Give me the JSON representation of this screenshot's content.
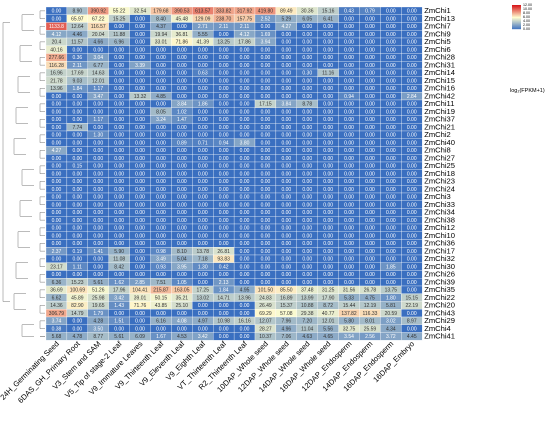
{
  "chart_data": {
    "type": "heatmap",
    "columns": [
      "24H_Germinating Seed",
      "6DAS_GH_Primary Root",
      "V3_Stem and SAM",
      "V5_Tip of stage-2 Leaf",
      "V9_Immature Leaves",
      "V9_Thirteenth Leaf",
      "V9_Eleventh Leaf",
      "V9_Eighth Leaf",
      "VT_Thirteenth Leaf",
      "R2_Thirteenth Leaf",
      "10DAP_Whole seed",
      "12DAP_Whole seed",
      "14DAP_Whole seed",
      "16DAP_Whole seed",
      "12DAP_Endosperm",
      "14DAP_Endosperm",
      "16DAP_Endosperm",
      "16DAP_Embryo"
    ],
    "rows": [
      "ZmChi1",
      "ZmChi13",
      "ZmChi7",
      "ZmChi9",
      "ZmChi5",
      "ZmChi6",
      "ZmChi28",
      "ZmChi31",
      "ZmChi14",
      "ZmChi15",
      "ZmChi16",
      "ZmChi42",
      "ZmChi11",
      "ZmChi19",
      "ZmChi37",
      "ZmChi21",
      "ZmChi2",
      "ZmChi40",
      "ZmChi8",
      "ZmChi27",
      "ZmChi25",
      "ZmChi18",
      "ZmChi23",
      "ZmChi24",
      "ZmChi3",
      "ZmChi33",
      "ZmChi34",
      "ZmChi38",
      "ZmChi12",
      "ZmChi10",
      "ZmChi36",
      "ZmChi17",
      "ZmChi32",
      "ZmChi30",
      "ZmChi26",
      "ZmChi39",
      "ZmChi35",
      "ZmChi22",
      "ZmChi20",
      "ZmChi43",
      "ZmChi29",
      "ZmChi4",
      "ZmChi41"
    ],
    "values": [
      [
        "0.00",
        "8.90",
        "390.92",
        "55.22",
        "32.54",
        "179.68",
        "390.53",
        "613.57",
        "333.82",
        "317.92",
        "419.80",
        "89.49",
        "30.36",
        "15.16",
        "0.43",
        "0.79",
        "0.00",
        "0.00"
      ],
      [
        "0.00",
        "65.97",
        "67.22",
        "15.25",
        "0.00",
        "8.40",
        "45.48",
        "129.09",
        "238.70",
        "157.75",
        "2.52",
        "5.29",
        "6.05",
        "6.41",
        "0.00",
        "0.00",
        "0.00",
        "0.00"
      ],
      [
        "1133.8",
        "12.64",
        "116.57",
        "0.00",
        "0.00",
        "4.37",
        "0.00",
        "2.71",
        "2.11",
        "2.11",
        "0.00",
        "4.27",
        "0.00",
        "0.00",
        "0.00",
        "0.00",
        "0.00",
        "0.00"
      ],
      [
        "4.12",
        "4.46",
        "20.04",
        "11.88",
        "0.00",
        "19.94",
        "36.81",
        "5.55",
        "0.00",
        "4.12",
        "1.69",
        "0.00",
        "0.00",
        "0.00",
        "0.00",
        "0.00",
        "0.00",
        "0.00"
      ],
      [
        "20.4",
        "11.57",
        "4.66",
        "6.96",
        "0.00",
        "33.01",
        "71.86",
        "41.39",
        "13.25",
        "17.86",
        "3.94",
        "0.00",
        "0.00",
        "0.00",
        "0.00",
        "0.00",
        "0.00",
        "0.00"
      ],
      [
        "40.16",
        "0.00",
        "0.00",
        "0.00",
        "0.00",
        "0.00",
        "0.00",
        "0.00",
        "0.00",
        "0.00",
        "0.00",
        "0.00",
        "0.00",
        "0.00",
        "0.00",
        "0.00",
        "0.00",
        "0.00"
      ],
      [
        "277.66",
        "0.36",
        "3.04",
        "0.00",
        "0.00",
        "0.00",
        "0.00",
        "0.00",
        "0.00",
        "0.00",
        "0.00",
        "0.00",
        "0.00",
        "0.00",
        "0.00",
        "0.00",
        "0.00",
        "0.00"
      ],
      [
        "116.28",
        "2.11",
        "6.77",
        "0.00",
        "3.39",
        "0.00",
        "0.00",
        "0.00",
        "0.00",
        "0.00",
        "0.00",
        "0.00",
        "0.00",
        "0.00",
        "0.00",
        "0.00",
        "0.00",
        "0.00"
      ],
      [
        "16.96",
        "17.69",
        "14.63",
        "0.00",
        "0.00",
        "0.00",
        "0.00",
        "0.63",
        "0.00",
        "0.00",
        "0.00",
        "0.00",
        "0.30",
        "11.16",
        "0.00",
        "0.00",
        "0.00",
        "0.00"
      ],
      [
        "21.78",
        "9.03",
        "12.01",
        "0.00",
        "0.00",
        "0.00",
        "0.00",
        "0.00",
        "0.00",
        "0.00",
        "0.00",
        "0.00",
        "0.00",
        "0.00",
        "0.00",
        "0.00",
        "0.00",
        "0.00"
      ],
      [
        "13.96",
        "1.84",
        "1.17",
        "0.00",
        "0.00",
        "0.00",
        "0.00",
        "0.00",
        "0.00",
        "0.00",
        "0.00",
        "0.00",
        "0.00",
        "0.00",
        "0.00",
        "0.00",
        "0.00",
        "0.00"
      ],
      [
        "0.00",
        "0.00",
        "3.47",
        "0.00",
        "13.32",
        "4.85",
        "0.00",
        "0.00",
        "0.00",
        "0.00",
        "0.00",
        "0.00",
        "0.00",
        "0.00",
        "0.94",
        "0.00",
        "0.00",
        "2.84"
      ],
      [
        "0.00",
        "0.00",
        "0.00",
        "0.00",
        "0.00",
        "0.00",
        "3.84",
        "1.86",
        "0.00",
        "0.00",
        "17.15",
        "3.84",
        "8.78",
        "0.00",
        "0.00",
        "0.00",
        "0.00",
        "0.00"
      ],
      [
        "0.00",
        "0.00",
        "0.00",
        "0.00",
        "0.00",
        "8.05",
        "1.02",
        "0.00",
        "0.00",
        "0.00",
        "0.00",
        "0.00",
        "0.00",
        "0.00",
        "0.00",
        "0.00",
        "0.00",
        "0.00"
      ],
      [
        "0.00",
        "0.00",
        "1.17",
        "0.00",
        "0.00",
        "3.24",
        "1.47",
        "0.00",
        "0.00",
        "0.00",
        "0.00",
        "0.00",
        "0.00",
        "0.00",
        "0.00",
        "0.00",
        "0.00",
        "0.00"
      ],
      [
        "0.00",
        "7.74",
        "0.00",
        "0.00",
        "0.00",
        "0.00",
        "0.00",
        "0.00",
        "0.00",
        "0.00",
        "0.00",
        "0.00",
        "0.00",
        "0.00",
        "0.00",
        "0.00",
        "0.00",
        "0.00"
      ],
      [
        "0.00",
        "0.00",
        "1.30",
        "0.00",
        "0.00",
        "0.00",
        "0.00",
        "0.00",
        "0.00",
        "0.00",
        "0.00",
        "0.00",
        "0.00",
        "0.00",
        "0.00",
        "0.00",
        "0.00",
        "0.00"
      ],
      [
        "0.00",
        "0.00",
        "0.00",
        "0.00",
        "0.00",
        "0.00",
        "0.89",
        "0.71",
        "0.94",
        "3.80",
        "0.00",
        "0.00",
        "0.00",
        "0.00",
        "0.00",
        "0.00",
        "0.00",
        "0.00"
      ],
      [
        "4.27",
        "0.00",
        "0.00",
        "0.00",
        "0.00",
        "0.00",
        "0.00",
        "0.00",
        "0.00",
        "0.00",
        "0.00",
        "0.00",
        "0.00",
        "0.00",
        "0.00",
        "0.00",
        "0.00",
        "0.00"
      ],
      [
        "0.00",
        "0.00",
        "0.00",
        "0.00",
        "0.00",
        "0.00",
        "0.00",
        "0.00",
        "0.00",
        "0.00",
        "0.00",
        "0.00",
        "0.00",
        "0.00",
        "0.00",
        "0.00",
        "0.00",
        "0.00"
      ],
      [
        "0.00",
        "0.15",
        "0.00",
        "0.00",
        "0.00",
        "0.00",
        "0.00",
        "0.00",
        "0.00",
        "0.00",
        "0.00",
        "0.00",
        "0.00",
        "0.00",
        "0.00",
        "0.00",
        "0.00",
        "0.00"
      ],
      [
        "0.00",
        "0.00",
        "0.00",
        "0.00",
        "0.00",
        "0.00",
        "0.00",
        "0.00",
        "0.00",
        "0.00",
        "0.00",
        "0.00",
        "0.00",
        "0.00",
        "0.00",
        "0.00",
        "0.00",
        "0.00"
      ],
      [
        "0.00",
        "0.00",
        "0.00",
        "0.00",
        "0.00",
        "0.00",
        "0.00",
        "0.00",
        "0.00",
        "0.00",
        "0.00",
        "0.00",
        "0.00",
        "0.00",
        "0.00",
        "0.00",
        "0.00",
        "0.00"
      ],
      [
        "0.00",
        "0.00",
        "0.00",
        "0.00",
        "0.00",
        "0.00",
        "0.00",
        "0.00",
        "0.00",
        "0.00",
        "0.00",
        "0.00",
        "0.00",
        "0.00",
        "0.00",
        "0.00",
        "0.00",
        "0.00"
      ],
      [
        "0.00",
        "0.00",
        "0.00",
        "0.00",
        "0.00",
        "0.00",
        "0.00",
        "0.00",
        "0.00",
        "0.00",
        "0.00",
        "0.00",
        "0.00",
        "0.00",
        "0.00",
        "0.00",
        "0.00",
        "0.00"
      ],
      [
        "0.00",
        "0.00",
        "0.00",
        "0.00",
        "0.00",
        "0.00",
        "0.00",
        "0.00",
        "0.00",
        "0.00",
        "0.00",
        "0.00",
        "0.00",
        "0.00",
        "0.00",
        "0.00",
        "0.00",
        "0.00"
      ],
      [
        "0.00",
        "0.00",
        "0.00",
        "0.00",
        "0.00",
        "0.00",
        "0.00",
        "0.00",
        "0.00",
        "0.00",
        "0.00",
        "0.00",
        "0.00",
        "0.00",
        "0.00",
        "0.00",
        "0.00",
        "0.00"
      ],
      [
        "0.00",
        "0.00",
        "0.00",
        "0.00",
        "0.00",
        "0.00",
        "0.00",
        "0.00",
        "0.00",
        "0.00",
        "0.00",
        "0.00",
        "0.00",
        "0.00",
        "0.00",
        "0.00",
        "0.00",
        "0.00"
      ],
      [
        "0.00",
        "0.00",
        "0.00",
        "0.00",
        "0.00",
        "0.00",
        "0.00",
        "0.00",
        "0.00",
        "0.00",
        "0.00",
        "0.00",
        "0.00",
        "0.00",
        "0.00",
        "0.00",
        "0.00",
        "0.00"
      ],
      [
        "0.00",
        "0.00",
        "0.00",
        "0.00",
        "0.00",
        "0.00",
        "0.00",
        "0.00",
        "0.00",
        "0.00",
        "0.00",
        "0.00",
        "0.00",
        "0.00",
        "0.00",
        "0.00",
        "0.00",
        "0.00"
      ],
      [
        "0.00",
        "0.00",
        "0.00",
        "0.00",
        "0.00",
        "0.00",
        "0.00",
        "0.00",
        "0.00",
        "0.00",
        "0.00",
        "0.00",
        "0.00",
        "0.00",
        "0.00",
        "0.00",
        "0.00",
        "0.00"
      ],
      [
        "2.37",
        "0.19",
        "1.41",
        "5.90",
        "0.00",
        "0.98",
        "8.10",
        "13.78",
        "26.81",
        "0.00",
        "0.00",
        "0.00",
        "0.00",
        "0.00",
        "0.00",
        "0.00",
        "0.00",
        "0.00"
      ],
      [
        "0.00",
        "0.00",
        "0.00",
        "11.08",
        "0.00",
        "3.49",
        "5.04",
        "7.18",
        "93.83",
        "0.00",
        "0.00",
        "0.00",
        "0.00",
        "0.00",
        "0.00",
        "0.00",
        "0.00",
        "0.00"
      ],
      [
        "23.17",
        "1.11",
        "0.00",
        "8.42",
        "0.00",
        "0.93",
        "3.95",
        "1.30",
        "0.42",
        "0.00",
        "0.00",
        "0.00",
        "0.00",
        "0.00",
        "0.00",
        "0.00",
        "1.85",
        "0.00"
      ],
      [
        "0.00",
        "0.00",
        "0.00",
        "0.00",
        "0.00",
        "0.00",
        "0.00",
        "0.00",
        "0.00",
        "0.00",
        "0.00",
        "0.00",
        "0.00",
        "0.00",
        "0.00",
        "0.00",
        "0.00",
        "0.00"
      ],
      [
        "6.36",
        "15.23",
        "5.61",
        "1.62",
        "2.85",
        "7.51",
        "1.05",
        "0.00",
        "2.13",
        "0.00",
        "0.00",
        "0.00",
        "0.00",
        "0.00",
        "0.00",
        "0.00",
        "0.00",
        "0.00"
      ],
      [
        "36.69",
        "100.69",
        "51.26",
        "17.96",
        "104.41",
        "215.87",
        "163.05",
        "17.25",
        "1.84",
        "4.95",
        "101.50",
        "85.50",
        "37.48",
        "31.25",
        "31.56",
        "26.78",
        "13.75",
        "0.00"
      ],
      [
        "6.62",
        "45.89",
        "25.98",
        "3.42",
        "39.01",
        "50.15",
        "35.21",
        "13.02",
        "14.71",
        "13.96",
        "24.83",
        "16.89",
        "13.99",
        "17.90",
        "5.33",
        "4.75",
        "1.80",
        "15.15"
      ],
      [
        "14.36",
        "82.90",
        "19.65",
        "1.43",
        "71.76",
        "43.85",
        "25.10",
        "0.00",
        "0.00",
        "0.00",
        "26.49",
        "15.37",
        "10.88",
        "8.72",
        "15.44",
        "12.19",
        "5.81",
        "22.19"
      ],
      [
        "306.79",
        "14.79",
        "1.79",
        "0.00",
        "0.00",
        "0.00",
        "0.00",
        "0.00",
        "0.00",
        "0.00",
        "69.29",
        "57.08",
        "29.38",
        "40.77",
        "137.82",
        "116.33",
        "20.59",
        "0.00"
      ],
      [
        "3.74",
        "0.00",
        "4.28",
        "1.51",
        "0.00",
        "6.16",
        "4.08",
        "4.97",
        "10.98",
        "16.16",
        "12.07",
        "7.96",
        "7.20",
        "12.01",
        "5.80",
        "8.01",
        "3.02",
        "8.97"
      ],
      [
        "0.38",
        "0.00",
        "3.50",
        "0.00",
        "0.00",
        "0.00",
        "0.00",
        "0.00",
        "0.00",
        "0.00",
        "28.27",
        "4.96",
        "11.04",
        "5.56",
        "32.75",
        "25.59",
        "4.34",
        "0.00"
      ],
      [
        "5.68",
        "4.78",
        "8.77",
        "5.61",
        "6.09",
        "1.67",
        "4.53",
        "3.42",
        "0.00",
        "0.00",
        "10.37",
        "7.06",
        "4.63",
        "4.65",
        "3.54",
        "2.56",
        "3.72",
        "4.45"
      ]
    ],
    "colorbar": {
      "ticks": [
        "12.00",
        "10.00",
        "8.00",
        "6.00",
        "4.00",
        "2.00",
        "0.00"
      ],
      "title": "log₂(FPKM+1)"
    },
    "colors": {
      "high": "#d7191c",
      "mid": "#fffdd0",
      "low": "#3a6fc0"
    }
  }
}
